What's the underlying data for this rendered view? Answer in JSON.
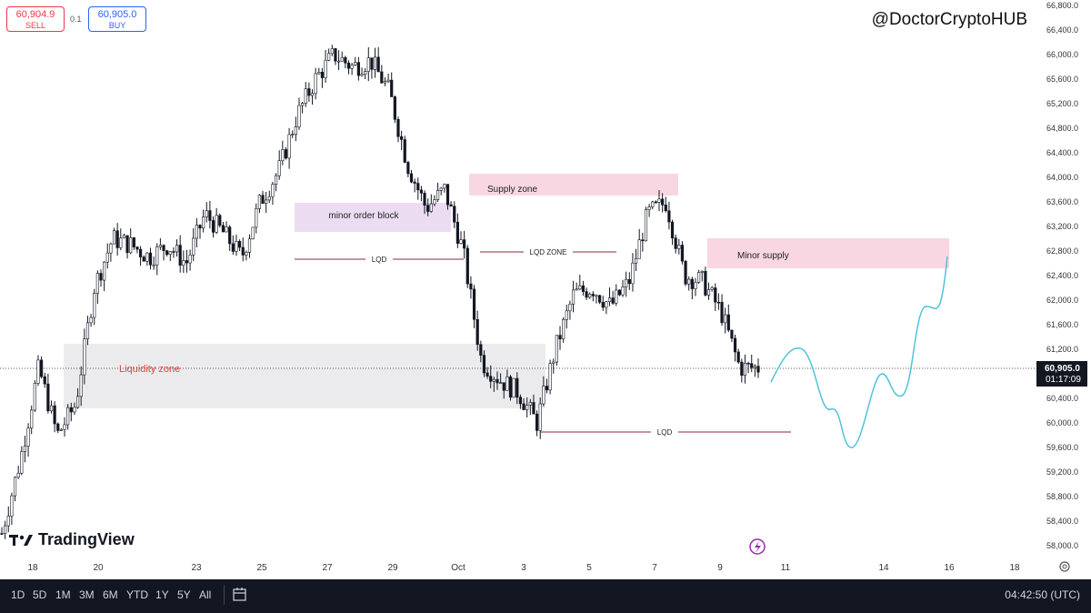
{
  "order_panel": {
    "sell_price": "60,904.9",
    "sell_label": "SELL",
    "spread": "0.1",
    "buy_price": "60,905.0",
    "buy_label": "BUY"
  },
  "watermark": "@DoctorCryptoHUB",
  "brand": "TradingView",
  "price_axis": {
    "ticks": [
      "66,800.0",
      "66,400.0",
      "66,000.0",
      "65,600.0",
      "65,200.0",
      "64,800.0",
      "64,400.0",
      "64,000.0",
      "63,600.0",
      "63,200.0",
      "62,800.0",
      "62,400.0",
      "62,000.0",
      "61,600.0",
      "61,200.0",
      "60,400.0",
      "60,000.0",
      "59,600.0",
      "59,200.0",
      "58,800.0",
      "58,400.0",
      "58,000.0"
    ],
    "last_price": "60,905.0",
    "countdown": "01:17:09"
  },
  "time_axis": {
    "ticks": [
      "18",
      "20",
      "23",
      "25",
      "27",
      "29",
      "Oct",
      "3",
      "5",
      "7",
      "9",
      "11",
      "14",
      "16",
      "18"
    ]
  },
  "annotations": {
    "minor_order_block": "minor order block",
    "supply_zone": "Supply zone",
    "minor_supply": "Minor supply",
    "liquidity_zone": "Liquidity zone",
    "lqd_1": "LQD",
    "lqd_zone": "LQD ZONE",
    "lqd_2": "LQD"
  },
  "bottom_bar": {
    "ranges": [
      "1D",
      "5D",
      "1M",
      "3M",
      "6M",
      "YTD",
      "1Y",
      "5Y",
      "All"
    ],
    "clock": "04:42:50 (UTC)"
  },
  "colors": {
    "candle": "#131722",
    "supply": "#f8d7e2",
    "order_block": "#ecdcf2",
    "liquidity": "#ebebed",
    "liquidity_text": "#e2463d",
    "projection": "#4ec3dc",
    "lqd_line": "#8a2b36",
    "sell": "#f23645",
    "buy": "#2962ff"
  },
  "chart_data": {
    "type": "candlestick",
    "symbol_quote": {
      "bid": 60904.9,
      "ask": 60905.0
    },
    "ylim": [
      58000,
      66800
    ],
    "x_ticks": [
      "18",
      "20",
      "23",
      "25",
      "27",
      "29",
      "Oct",
      "3",
      "5",
      "7",
      "9",
      "11",
      "14",
      "16",
      "18"
    ],
    "path_close": [
      58200,
      59400,
      60900,
      59800,
      60300,
      62200,
      63000,
      62900,
      62700,
      62900,
      62600,
      63400,
      63100,
      62700,
      63600,
      64100,
      65000,
      65600,
      66000,
      65800,
      65900,
      65400,
      64200,
      63500,
      63800,
      62800,
      61000,
      60700,
      60500,
      60000,
      61200,
      62100,
      62200,
      61900,
      62300,
      63400,
      63600,
      62400,
      62300,
      61800,
      60900,
      60900
    ],
    "zones": [
      {
        "label": "minor order block",
        "price_top": 63550,
        "price_bottom": 63100
      },
      {
        "label": "Supply zone",
        "price_top": 64050,
        "price_bottom": 63700
      },
      {
        "label": "Minor supply",
        "price_top": 62950,
        "price_bottom": 62500
      },
      {
        "label": "Liquidity zone",
        "price_top": 61250,
        "price_bottom": 60200
      }
    ],
    "levels": [
      {
        "label": "LQD",
        "price": 62700
      },
      {
        "label": "LQD ZONE",
        "price": 62780
      },
      {
        "label": "LQD",
        "price": 59850
      }
    ],
    "projection_path": [
      60700,
      61300,
      60400,
      59600,
      60800,
      60400,
      62000,
      61700,
      62700
    ]
  }
}
